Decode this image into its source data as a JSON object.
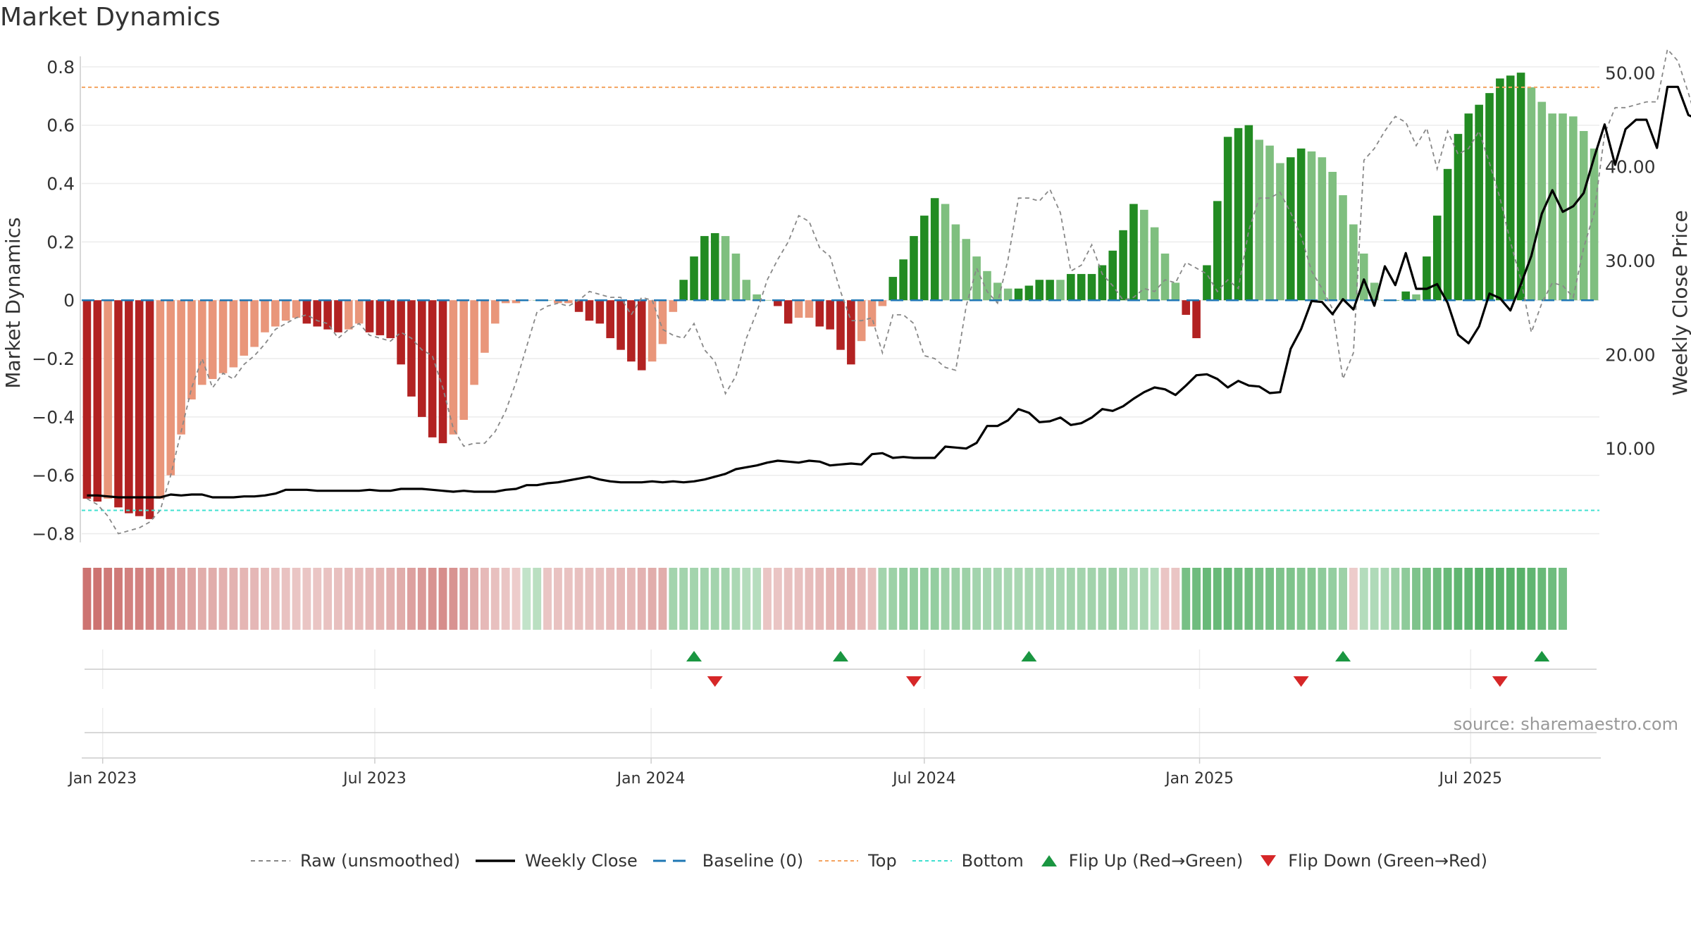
{
  "title": "Market Dynamics",
  "source": "source: sharemaestro.com",
  "colors": {
    "strong_red": "#b22222",
    "light_red": "#e9967a",
    "strong_green": "#228b22",
    "light_green": "#7fbf7f",
    "raw_line": "#888888",
    "close_line": "#000000",
    "baseline": "#1f77b4",
    "top": "#f4a460",
    "bottom": "#40e0d0",
    "flip_up": "#1a9641",
    "flip_down": "#d62728",
    "strip_red": "#c0504d",
    "strip_green": "#2e9e44"
  },
  "legend": [
    {
      "label": "Raw (unsmoothed)",
      "symbol": "dashed",
      "color": "#888888"
    },
    {
      "label": "Weekly Close",
      "symbol": "solid",
      "color": "#000000"
    },
    {
      "label": "Baseline (0)",
      "symbol": "longdash",
      "color": "#1f77b4"
    },
    {
      "label": "Top",
      "symbol": "dashed",
      "color": "#f4a460"
    },
    {
      "label": "Bottom",
      "symbol": "dashed",
      "color": "#40e0d0"
    },
    {
      "label": "Flip Up (Red→Green)",
      "symbol": "triangle-up",
      "color": "#1a9641"
    },
    {
      "label": "Flip Down (Green→Red)",
      "symbol": "triangle-down",
      "color": "#d62728"
    }
  ],
  "chart_data": {
    "type": "bar",
    "title": "Market Dynamics",
    "ylabel": "Market Dynamics",
    "y2label": "Weekly Close Price",
    "ylim": [
      -0.83,
      0.86
    ],
    "y2lim": [
      0,
      52.5
    ],
    "yticks": [
      "0.8",
      "0.6",
      "0.4",
      "0.2",
      "0",
      "−0.2",
      "−0.4",
      "−0.6",
      "−0.8"
    ],
    "ytick_values": [
      0.8,
      0.6,
      0.4,
      0.2,
      0,
      -0.2,
      -0.4,
      -0.6,
      -0.8
    ],
    "y2ticks": [
      "50.00",
      "40.00",
      "30.00",
      "20.00",
      "10.00"
    ],
    "y2tick_values": [
      50,
      40,
      30,
      20,
      10
    ],
    "x_start_week": 0,
    "week_count": 145,
    "xticks": [
      {
        "label": "Jan 2023",
        "week": 2
      },
      {
        "label": "Jul 2023",
        "week": 28
      },
      {
        "label": "Jan 2024",
        "week": 54.4
      },
      {
        "label": "Jul 2024",
        "week": 80.5
      },
      {
        "label": "Jan 2025",
        "week": 106.8
      },
      {
        "label": "Jul 2025",
        "week": 132.7
      }
    ],
    "top_line": 0.73,
    "bottom_line": -0.72,
    "baseline": 0,
    "grid": true,
    "legend_position": "bottom",
    "series": [
      {
        "name": "Raw (unsmoothed)",
        "values": [
          -0.68,
          -0.7,
          -0.74,
          -0.8,
          -0.79,
          -0.78,
          -0.76,
          -0.72,
          -0.6,
          -0.45,
          -0.3,
          -0.2,
          -0.3,
          -0.25,
          -0.27,
          -0.22,
          -0.19,
          -0.15,
          -0.1,
          -0.08,
          -0.06,
          -0.05,
          -0.07,
          -0.08,
          -0.13,
          -0.1,
          -0.08,
          -0.12,
          -0.13,
          -0.14,
          -0.11,
          -0.13,
          -0.17,
          -0.19,
          -0.3,
          -0.44,
          -0.5,
          -0.49,
          -0.49,
          -0.45,
          -0.38,
          -0.28,
          -0.16,
          -0.04,
          -0.02,
          -0.01,
          -0.02,
          0.0,
          0.03,
          0.02,
          0.01,
          0.01,
          -0.05,
          0.01,
          0.0,
          -0.1,
          -0.12,
          -0.13,
          -0.08,
          -0.17,
          -0.21,
          -0.32,
          -0.26,
          -0.13,
          -0.04,
          0.07,
          0.14,
          0.2,
          0.29,
          0.27,
          0.18,
          0.15,
          0.03,
          -0.07,
          -0.07,
          -0.06,
          -0.18,
          -0.05,
          -0.05,
          -0.08,
          -0.19,
          -0.2,
          -0.23,
          -0.24,
          -0.02,
          0.11,
          0.03,
          -0.01,
          0.14,
          0.35,
          0.35,
          0.34,
          0.38,
          0.3,
          0.1,
          0.12,
          0.19,
          0.09,
          0.05,
          0.0,
          0.01,
          0.04,
          0.03,
          0.07,
          0.06,
          0.13,
          0.11,
          0.09,
          0.03,
          0.07,
          0.04,
          0.24,
          0.35,
          0.35,
          0.37,
          0.3,
          0.22,
          0.1,
          0.04,
          -0.03,
          -0.27,
          -0.18,
          0.48,
          0.52,
          0.58,
          0.63,
          0.61,
          0.53,
          0.59,
          0.45,
          0.58,
          0.5,
          0.52,
          0.58,
          0.47,
          0.35,
          0.2,
          0.07,
          -0.11,
          -0.01,
          0.06,
          0.05,
          0.01,
          0.18,
          0.3,
          0.57,
          0.66,
          0.66,
          0.67,
          0.68,
          0.68,
          0.86,
          0.82,
          0.71,
          0.59,
          0.62,
          0.58,
          0.48,
          0.38,
          0.37
        ]
      },
      {
        "name": "Weekly Close",
        "values": [
          5.0,
          5.0,
          4.9,
          4.8,
          4.8,
          4.8,
          4.8,
          4.8,
          5.1,
          5.0,
          5.1,
          5.1,
          4.8,
          4.8,
          4.8,
          4.9,
          4.9,
          5.0,
          5.2,
          5.6,
          5.6,
          5.6,
          5.5,
          5.5,
          5.5,
          5.5,
          5.5,
          5.6,
          5.5,
          5.5,
          5.7,
          5.7,
          5.7,
          5.6,
          5.5,
          5.4,
          5.5,
          5.4,
          5.4,
          5.4,
          5.6,
          5.7,
          6.1,
          6.1,
          6.3,
          6.4,
          6.6,
          6.8,
          7.0,
          6.7,
          6.5,
          6.4,
          6.4,
          6.4,
          6.5,
          6.4,
          6.5,
          6.4,
          6.5,
          6.7,
          7.0,
          7.3,
          7.8,
          8.0,
          8.2,
          8.5,
          8.7,
          8.6,
          8.5,
          8.7,
          8.6,
          8.2,
          8.3,
          8.4,
          8.3,
          9.4,
          9.5,
          9.0,
          9.1,
          9.0,
          9.0,
          9.0,
          10.2,
          10.1,
          10.0,
          10.6,
          12.4,
          12.4,
          13.0,
          14.2,
          13.8,
          12.8,
          12.9,
          13.3,
          12.5,
          12.7,
          13.3,
          14.2,
          14.0,
          14.5,
          15.3,
          16.0,
          16.5,
          16.3,
          15.7,
          16.7,
          17.8,
          17.9,
          17.4,
          16.5,
          17.2,
          16.7,
          16.6,
          15.9,
          16.0,
          20.6,
          22.7,
          25.7,
          25.6,
          24.3,
          25.9,
          24.8,
          28.0,
          25.2,
          29.4,
          27.4,
          30.8,
          27.0,
          27.0,
          27.5,
          25.5,
          22.1,
          21.2,
          23.0,
          26.5,
          26.0,
          24.7,
          27.5,
          30.5,
          35.0,
          37.5,
          35.2,
          35.8,
          37.2,
          41.0,
          44.5,
          40.2,
          44.0,
          45.0,
          45.0,
          42.0,
          48.5,
          48.5,
          45.5,
          45.0
        ]
      }
    ],
    "bars": [
      {
        "v": -0.68,
        "c": "sr"
      },
      {
        "v": -0.69,
        "c": "sr"
      },
      {
        "v": -0.68,
        "c": "lr"
      },
      {
        "v": -0.71,
        "c": "sr"
      },
      {
        "v": -0.73,
        "c": "sr"
      },
      {
        "v": -0.74,
        "c": "sr"
      },
      {
        "v": -0.75,
        "c": "sr"
      },
      {
        "v": -0.68,
        "c": "lr"
      },
      {
        "v": -0.6,
        "c": "lr"
      },
      {
        "v": -0.46,
        "c": "lr"
      },
      {
        "v": -0.34,
        "c": "lr"
      },
      {
        "v": -0.29,
        "c": "lr"
      },
      {
        "v": -0.27,
        "c": "lr"
      },
      {
        "v": -0.25,
        "c": "lr"
      },
      {
        "v": -0.23,
        "c": "lr"
      },
      {
        "v": -0.19,
        "c": "lr"
      },
      {
        "v": -0.16,
        "c": "lr"
      },
      {
        "v": -0.11,
        "c": "lr"
      },
      {
        "v": -0.09,
        "c": "lr"
      },
      {
        "v": -0.07,
        "c": "lr"
      },
      {
        "v": -0.06,
        "c": "lr"
      },
      {
        "v": -0.08,
        "c": "sr"
      },
      {
        "v": -0.09,
        "c": "sr"
      },
      {
        "v": -0.1,
        "c": "sr"
      },
      {
        "v": -0.11,
        "c": "sr"
      },
      {
        "v": -0.1,
        "c": "lr"
      },
      {
        "v": -0.08,
        "c": "lr"
      },
      {
        "v": -0.11,
        "c": "sr"
      },
      {
        "v": -0.12,
        "c": "sr"
      },
      {
        "v": -0.13,
        "c": "sr"
      },
      {
        "v": -0.22,
        "c": "sr"
      },
      {
        "v": -0.33,
        "c": "sr"
      },
      {
        "v": -0.4,
        "c": "sr"
      },
      {
        "v": -0.47,
        "c": "sr"
      },
      {
        "v": -0.49,
        "c": "sr"
      },
      {
        "v": -0.46,
        "c": "lr"
      },
      {
        "v": -0.41,
        "c": "lr"
      },
      {
        "v": -0.29,
        "c": "lr"
      },
      {
        "v": -0.18,
        "c": "lr"
      },
      {
        "v": -0.08,
        "c": "lr"
      },
      {
        "v": -0.01,
        "c": "lr"
      },
      {
        "v": -0.01,
        "c": "lr"
      },
      {
        "v": 0.0,
        "c": "lr"
      },
      {
        "v": 0.0,
        "c": "lg"
      },
      {
        "v": 0.0,
        "c": "lg"
      },
      {
        "v": -0.01,
        "c": "lr"
      },
      {
        "v": -0.01,
        "c": "lr"
      },
      {
        "v": -0.04,
        "c": "sr"
      },
      {
        "v": -0.07,
        "c": "sr"
      },
      {
        "v": -0.08,
        "c": "sr"
      },
      {
        "v": -0.13,
        "c": "sr"
      },
      {
        "v": -0.17,
        "c": "sr"
      },
      {
        "v": -0.21,
        "c": "sr"
      },
      {
        "v": -0.24,
        "c": "sr"
      },
      {
        "v": -0.21,
        "c": "lr"
      },
      {
        "v": -0.15,
        "c": "lr"
      },
      {
        "v": -0.04,
        "c": "lr"
      },
      {
        "v": 0.07,
        "c": "sg"
      },
      {
        "v": 0.15,
        "c": "sg"
      },
      {
        "v": 0.22,
        "c": "sg"
      },
      {
        "v": 0.23,
        "c": "sg"
      },
      {
        "v": 0.22,
        "c": "lg"
      },
      {
        "v": 0.16,
        "c": "lg"
      },
      {
        "v": 0.07,
        "c": "lg"
      },
      {
        "v": 0.02,
        "c": "lg"
      },
      {
        "v": 0.0,
        "c": "lg"
      },
      {
        "v": -0.02,
        "c": "sr"
      },
      {
        "v": -0.08,
        "c": "sr"
      },
      {
        "v": -0.06,
        "c": "lr"
      },
      {
        "v": -0.06,
        "c": "lr"
      },
      {
        "v": -0.09,
        "c": "sr"
      },
      {
        "v": -0.1,
        "c": "sr"
      },
      {
        "v": -0.17,
        "c": "sr"
      },
      {
        "v": -0.22,
        "c": "sr"
      },
      {
        "v": -0.14,
        "c": "lr"
      },
      {
        "v": -0.09,
        "c": "lr"
      },
      {
        "v": -0.02,
        "c": "lr"
      },
      {
        "v": 0.08,
        "c": "sg"
      },
      {
        "v": 0.14,
        "c": "sg"
      },
      {
        "v": 0.22,
        "c": "sg"
      },
      {
        "v": 0.29,
        "c": "sg"
      },
      {
        "v": 0.35,
        "c": "sg"
      },
      {
        "v": 0.33,
        "c": "lg"
      },
      {
        "v": 0.26,
        "c": "lg"
      },
      {
        "v": 0.21,
        "c": "lg"
      },
      {
        "v": 0.15,
        "c": "lg"
      },
      {
        "v": 0.1,
        "c": "lg"
      },
      {
        "v": 0.06,
        "c": "lg"
      },
      {
        "v": 0.04,
        "c": "lg"
      },
      {
        "v": 0.04,
        "c": "sg"
      },
      {
        "v": 0.05,
        "c": "sg"
      },
      {
        "v": 0.07,
        "c": "sg"
      },
      {
        "v": 0.07,
        "c": "sg"
      },
      {
        "v": 0.07,
        "c": "lg"
      },
      {
        "v": 0.09,
        "c": "sg"
      },
      {
        "v": 0.09,
        "c": "sg"
      },
      {
        "v": 0.09,
        "c": "sg"
      },
      {
        "v": 0.12,
        "c": "sg"
      },
      {
        "v": 0.17,
        "c": "sg"
      },
      {
        "v": 0.24,
        "c": "sg"
      },
      {
        "v": 0.33,
        "c": "sg"
      },
      {
        "v": 0.31,
        "c": "lg"
      },
      {
        "v": 0.25,
        "c": "lg"
      },
      {
        "v": 0.16,
        "c": "lg"
      },
      {
        "v": 0.06,
        "c": "lg"
      },
      {
        "v": -0.05,
        "c": "sr"
      },
      {
        "v": -0.13,
        "c": "sr"
      },
      {
        "v": 0.12,
        "c": "sg"
      },
      {
        "v": 0.34,
        "c": "sg"
      },
      {
        "v": 0.56,
        "c": "sg"
      },
      {
        "v": 0.59,
        "c": "sg"
      },
      {
        "v": 0.6,
        "c": "sg"
      },
      {
        "v": 0.55,
        "c": "lg"
      },
      {
        "v": 0.53,
        "c": "lg"
      },
      {
        "v": 0.47,
        "c": "lg"
      },
      {
        "v": 0.49,
        "c": "sg"
      },
      {
        "v": 0.52,
        "c": "sg"
      },
      {
        "v": 0.51,
        "c": "lg"
      },
      {
        "v": 0.49,
        "c": "lg"
      },
      {
        "v": 0.44,
        "c": "lg"
      },
      {
        "v": 0.36,
        "c": "lg"
      },
      {
        "v": 0.26,
        "c": "lg"
      },
      {
        "v": 0.16,
        "c": "lg"
      },
      {
        "v": 0.06,
        "c": "lg"
      },
      {
        "v": 0.0,
        "c": "lg"
      },
      {
        "v": 0.0,
        "c": "sg"
      },
      {
        "v": 0.03,
        "c": "sg"
      },
      {
        "v": 0.02,
        "c": "lg"
      },
      {
        "v": 0.15,
        "c": "sg"
      },
      {
        "v": 0.29,
        "c": "sg"
      },
      {
        "v": 0.45,
        "c": "sg"
      },
      {
        "v": 0.57,
        "c": "sg"
      },
      {
        "v": 0.64,
        "c": "sg"
      },
      {
        "v": 0.67,
        "c": "sg"
      },
      {
        "v": 0.71,
        "c": "sg"
      },
      {
        "v": 0.76,
        "c": "sg"
      },
      {
        "v": 0.77,
        "c": "sg"
      },
      {
        "v": 0.78,
        "c": "sg"
      },
      {
        "v": 0.73,
        "c": "lg"
      },
      {
        "v": 0.68,
        "c": "lg"
      },
      {
        "v": 0.64,
        "c": "lg"
      },
      {
        "v": 0.64,
        "c": "lg"
      },
      {
        "v": 0.63,
        "c": "lg"
      },
      {
        "v": 0.58,
        "c": "lg"
      },
      {
        "v": 0.52,
        "c": "lg"
      }
    ],
    "strip": [
      -0.8,
      -0.8,
      -0.75,
      -0.75,
      -0.7,
      -0.7,
      -0.65,
      -0.6,
      -0.5,
      -0.45,
      -0.4,
      -0.35,
      -0.35,
      -0.32,
      -0.3,
      -0.28,
      -0.26,
      -0.22,
      -0.2,
      -0.18,
      -0.15,
      -0.15,
      -0.15,
      -0.18,
      -0.2,
      -0.22,
      -0.22,
      -0.25,
      -0.28,
      -0.3,
      -0.35,
      -0.45,
      -0.5,
      -0.55,
      -0.6,
      -0.55,
      -0.45,
      -0.35,
      -0.25,
      -0.2,
      -0.15,
      -0.1,
      0.1,
      0.15,
      -0.15,
      -0.18,
      -0.18,
      -0.2,
      -0.2,
      -0.2,
      -0.22,
      -0.25,
      -0.25,
      -0.3,
      -0.35,
      -0.35,
      0.3,
      0.3,
      0.3,
      0.3,
      0.3,
      0.3,
      0.25,
      0.2,
      0.18,
      -0.15,
      -0.15,
      -0.2,
      -0.2,
      -0.22,
      -0.25,
      -0.28,
      -0.3,
      -0.3,
      -0.25,
      -0.2,
      0.3,
      0.35,
      0.4,
      0.4,
      0.4,
      0.4,
      0.35,
      0.35,
      0.35,
      0.3,
      0.28,
      0.28,
      0.26,
      0.26,
      0.26,
      0.26,
      0.28,
      0.28,
      0.3,
      0.3,
      0.32,
      0.32,
      0.35,
      0.3,
      0.25,
      0.25,
      0.2,
      -0.15,
      -0.15,
      0.6,
      0.65,
      0.7,
      0.7,
      0.7,
      0.65,
      0.65,
      0.6,
      0.6,
      0.55,
      0.55,
      0.5,
      0.5,
      0.45,
      0.4,
      0.35,
      -0.1,
      0.2,
      0.22,
      0.25,
      0.35,
      0.45,
      0.55,
      0.6,
      0.65,
      0.7,
      0.75,
      0.75,
      0.8,
      0.8,
      0.8,
      0.8,
      0.8,
      0.75,
      0.7,
      0.65,
      0.6
    ],
    "flips_up": [
      58,
      72,
      90,
      120,
      139
    ],
    "flips_down": [
      60,
      79,
      116,
      135
    ]
  }
}
